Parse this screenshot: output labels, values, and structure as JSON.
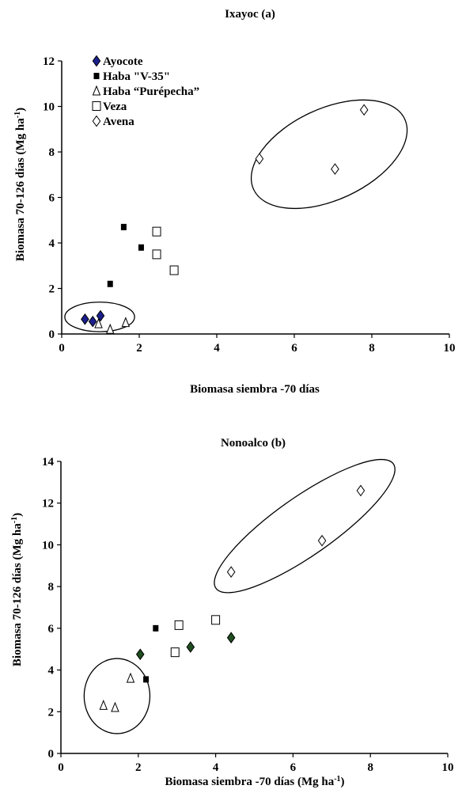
{
  "chart_data": [
    {
      "type": "scatter",
      "title": "Ixayoc (a)",
      "xlabel": "Biomasa siembra -70 días",
      "ylabel_main": "Biomasa 70-126 días (Mg ha",
      "ylabel_sup": "-1",
      "ylabel_close": ")",
      "xlim": [
        0,
        10
      ],
      "ylim": [
        0,
        12
      ],
      "xticks": [
        "0",
        "2",
        "4",
        "6",
        "8",
        "10"
      ],
      "yticks": [
        "0",
        "2",
        "4",
        "6",
        "8",
        "10",
        "12"
      ],
      "grid": false,
      "legend_position": "top-left",
      "series": [
        {
          "name": "Ayocote",
          "marker": "filled-diamond",
          "color": "#1a1f8c",
          "points": [
            [
              0.6,
              0.65
            ],
            [
              0.8,
              0.55
            ],
            [
              1.0,
              0.8
            ]
          ]
        },
        {
          "name": "Haba \"V-35\"",
          "marker": "filled-square",
          "color": "#000000",
          "points": [
            [
              1.25,
              2.2
            ],
            [
              1.6,
              4.7
            ],
            [
              2.05,
              3.8
            ]
          ]
        },
        {
          "name": "Haba “Purépecha”",
          "marker": "open-triangle",
          "color": "#000000",
          "points": [
            [
              0.95,
              0.45
            ],
            [
              1.25,
              0.2
            ],
            [
              1.65,
              0.5
            ]
          ]
        },
        {
          "name": "Veza",
          "marker": "open-square",
          "color": "#000000",
          "points": [
            [
              2.45,
              4.5
            ],
            [
              2.45,
              3.5
            ],
            [
              2.9,
              2.8
            ]
          ]
        },
        {
          "name": "Avena",
          "marker": "open-diamond",
          "color": "#000000",
          "points": [
            [
              5.1,
              7.7
            ],
            [
              7.05,
              7.25
            ],
            [
              7.8,
              9.85
            ]
          ]
        }
      ],
      "ellipses": [
        {
          "cx": 0.98,
          "cy": 0.75,
          "rx": 0.9,
          "ry": 0.65,
          "rotate": 0
        },
        {
          "cx": 6.9,
          "cy": 7.9,
          "rx": 2.15,
          "ry": 2.0,
          "rotate": -25
        }
      ]
    },
    {
      "type": "scatter",
      "title": "Nonoalco (b)",
      "xlabel_main": "Biomasa siembra -70 días (Mg ha",
      "xlabel_sup": "-1",
      "xlabel_close": ")",
      "ylabel_main": "Biomasa 70-126 días (Mg ha",
      "ylabel_sup": "-1",
      "ylabel_close": ")",
      "xlim": [
        0,
        10
      ],
      "ylim": [
        0,
        14
      ],
      "xticks": [
        "0",
        "2",
        "4",
        "6",
        "8",
        "10"
      ],
      "yticks": [
        "0",
        "2",
        "4",
        "6",
        "8",
        "10",
        "12",
        "14"
      ],
      "grid": false,
      "series": [
        {
          "name": "Ayocote",
          "marker": "filled-diamond",
          "color": "#1f4d1f",
          "points": [
            [
              2.05,
              4.75
            ],
            [
              3.35,
              5.1
            ],
            [
              4.4,
              5.55
            ]
          ]
        },
        {
          "name": "Haba \"V-35\"",
          "marker": "filled-square",
          "color": "#000000",
          "points": [
            [
              2.2,
              3.55
            ],
            [
              2.45,
              6.0
            ]
          ]
        },
        {
          "name": "Haba “Purépecha”",
          "marker": "open-triangle",
          "color": "#000000",
          "points": [
            [
              1.1,
              2.3
            ],
            [
              1.4,
              2.2
            ],
            [
              1.8,
              3.6
            ]
          ]
        },
        {
          "name": "Veza",
          "marker": "open-square",
          "color": "#000000",
          "points": [
            [
              2.95,
              4.85
            ],
            [
              3.05,
              6.15
            ],
            [
              4.0,
              6.4
            ]
          ]
        },
        {
          "name": "Avena",
          "marker": "open-diamond",
          "color": "#000000",
          "points": [
            [
              4.4,
              8.7
            ],
            [
              6.75,
              10.2
            ],
            [
              7.75,
              12.6
            ]
          ]
        }
      ],
      "ellipses": [
        {
          "cx": 1.45,
          "cy": 2.75,
          "rx": 0.85,
          "ry": 1.8,
          "rotate": 0
        },
        {
          "cx": 6.3,
          "cy": 10.9,
          "rx": 2.8,
          "ry": 1.4,
          "rotate": -35
        }
      ]
    }
  ]
}
